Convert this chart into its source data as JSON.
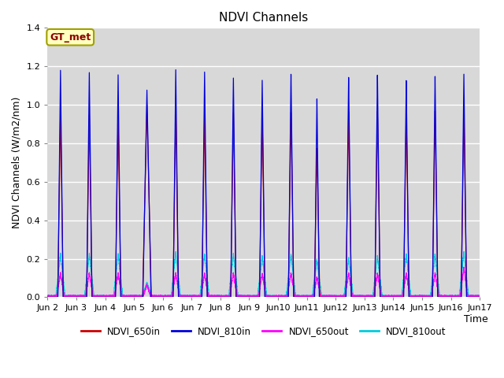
{
  "title": "NDVI Channels",
  "ylabel": "NDVI Channels (W/m2/nm)",
  "xlabel": "Time",
  "annotation": "GT_met",
  "ylim": [
    0.0,
    1.4
  ],
  "xlim": [
    0,
    15
  ],
  "colors": {
    "NDVI_650in": "#cc0000",
    "NDVI_810in": "#0000dd",
    "NDVI_650out": "#ff00ff",
    "NDVI_810out": "#00ccdd"
  },
  "background_color": "#d8d8d8",
  "fig_background": "#ffffff",
  "grid_color": "#c8c8c8",
  "title_fontsize": 11,
  "axis_fontsize": 9,
  "tick_fontsize": 8
}
